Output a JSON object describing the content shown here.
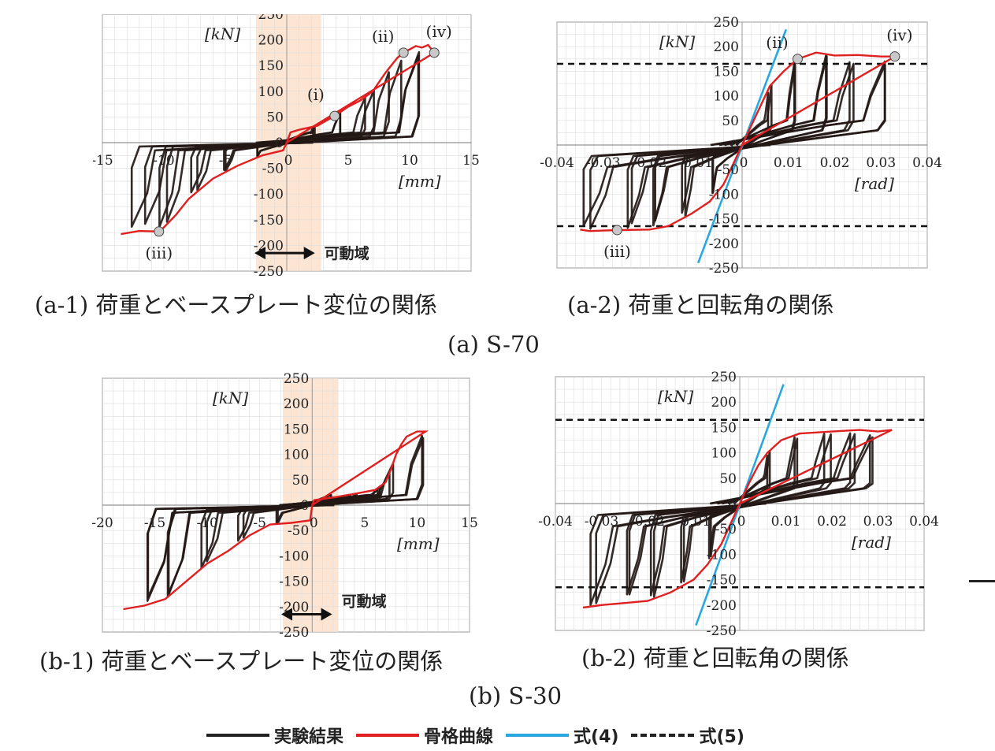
{
  "colors": {
    "experiment": "#231815",
    "skeleton": "#e02020",
    "eq4": "#29a8e0",
    "eq5": "#111111",
    "movable": "#fbe0c8",
    "grid": "#dcdcdc",
    "marker": "#c8c8c8"
  },
  "charts": [
    {
      "id": "a1",
      "caption": "(a-1) 荷重とベースプレート変位の関係",
      "ylabel": "[kN]",
      "xlabel": "[mm]",
      "xlim": [
        -15,
        15
      ],
      "ylim": [
        -250,
        250
      ],
      "xticks": [
        "-15",
        "-10",
        "-5",
        "0",
        "5",
        "10",
        "15"
      ],
      "xtick_values": [
        -15,
        -10,
        -5,
        0,
        5,
        10,
        15
      ],
      "yticks": [
        "250",
        "200",
        "150",
        "100",
        "50",
        "0",
        "-50",
        "-100",
        "-150",
        "-200",
        "-250"
      ],
      "ytick_values": [
        250,
        200,
        150,
        100,
        50,
        0,
        -50,
        -100,
        -150,
        -200,
        -250
      ],
      "movable_range": [
        -2.5,
        2.8
      ],
      "movable_label": "可動域",
      "points": [
        {
          "label": "(i)",
          "x": 3.9,
          "y": 52
        },
        {
          "label": "(ii)",
          "x": 9.5,
          "y": 175
        },
        {
          "label": "(iii)",
          "x": -10.4,
          "y": -173
        },
        {
          "label": "(iv)",
          "x": 12.0,
          "y": 175
        }
      ],
      "skeleton": [
        [
          0,
          0
        ],
        [
          0.3,
          20
        ],
        [
          1,
          25
        ],
        [
          2.5,
          33
        ],
        [
          3.9,
          52
        ],
        [
          5,
          70
        ],
        [
          6,
          82
        ],
        [
          7,
          100
        ],
        [
          8,
          135
        ],
        [
          9,
          165
        ],
        [
          9.5,
          175
        ],
        [
          10.5,
          188
        ],
        [
          11,
          185
        ],
        [
          11.5,
          190
        ],
        [
          12,
          175
        ],
        [
          0,
          0
        ],
        [
          -0.3,
          -15
        ],
        [
          -2,
          -25
        ],
        [
          -4,
          -45
        ],
        [
          -6,
          -70
        ],
        [
          -8,
          -110
        ],
        [
          -9,
          -140
        ],
        [
          -10,
          -165
        ],
        [
          -10.4,
          -173
        ],
        [
          -12,
          -172
        ],
        [
          -13.5,
          -178
        ]
      ]
    },
    {
      "id": "a2",
      "caption": "(a-2) 荷重と回転角の関係",
      "ylabel": "[kN]",
      "xlabel": "[rad]",
      "xlim": [
        -0.04,
        0.04
      ],
      "ylim": [
        -250,
        250
      ],
      "xticks": [
        "-0.04",
        "-0.03",
        "-0.02",
        "-0.01",
        "0",
        "0.01",
        "0.02",
        "0.03",
        "0.04"
      ],
      "xtick_values": [
        -0.04,
        -0.03,
        -0.02,
        -0.01,
        0,
        0.01,
        0.02,
        0.03,
        0.04
      ],
      "yticks": [
        "250",
        "200",
        "150",
        "100",
        "50",
        "0",
        "-50",
        "-100",
        "-150",
        "-200",
        "-250"
      ],
      "ytick_values": [
        250,
        200,
        150,
        100,
        50,
        0,
        -50,
        -100,
        -150,
        -200,
        -250
      ],
      "eq5_levels": [
        165,
        -165
      ],
      "eq4_line": [
        [
          -0.0095,
          -240
        ],
        [
          0.0095,
          235
        ]
      ],
      "points": [
        {
          "label": "(ii)",
          "x": 0.012,
          "y": 175
        },
        {
          "label": "(iii)",
          "x": -0.027,
          "y": -173
        },
        {
          "label": "(iv)",
          "x": 0.033,
          "y": 180
        }
      ],
      "skeleton": [
        [
          0,
          0
        ],
        [
          0.002,
          40
        ],
        [
          0.004,
          80
        ],
        [
          0.006,
          120
        ],
        [
          0.009,
          150
        ],
        [
          0.012,
          175
        ],
        [
          0.016,
          188
        ],
        [
          0.02,
          182
        ],
        [
          0.025,
          183
        ],
        [
          0.03,
          180
        ],
        [
          0.033,
          180
        ],
        [
          0,
          0
        ],
        [
          -0.002,
          -40
        ],
        [
          -0.004,
          -80
        ],
        [
          -0.007,
          -115
        ],
        [
          -0.011,
          -140
        ],
        [
          -0.016,
          -165
        ],
        [
          -0.02,
          -172
        ],
        [
          -0.027,
          -173
        ],
        [
          -0.033,
          -175
        ],
        [
          -0.035,
          -172
        ]
      ]
    },
    {
      "id": "b1",
      "caption": "(b-1) 荷重とベースプレート変位の関係",
      "ylabel": "[kN]",
      "xlabel": "[mm]",
      "xlim": [
        -20,
        15
      ],
      "ylim": [
        -250,
        250
      ],
      "xticks": [
        "-20",
        "-15",
        "-10",
        "-5",
        "0",
        "5",
        "10",
        "15"
      ],
      "xtick_values": [
        -20,
        -15,
        -10,
        -5,
        0,
        5,
        10,
        15
      ],
      "yticks": [
        "250",
        "200",
        "150",
        "100",
        "50",
        "0",
        "-50",
        "-100",
        "-150",
        "-200",
        "-250"
      ],
      "ytick_values": [
        250,
        200,
        150,
        100,
        50,
        0,
        -50,
        -100,
        -150,
        -200,
        -250
      ],
      "movable_range": [
        -2.8,
        2.5
      ],
      "movable_label": "可動域",
      "points": [],
      "skeleton": [
        [
          0,
          0
        ],
        [
          0.2,
          10
        ],
        [
          2,
          15
        ],
        [
          4,
          22
        ],
        [
          6,
          30
        ],
        [
          7,
          45
        ],
        [
          7.5,
          70
        ],
        [
          8,
          100
        ],
        [
          8.5,
          120
        ],
        [
          9,
          135
        ],
        [
          10,
          145
        ],
        [
          10.8,
          145
        ],
        [
          0,
          0
        ],
        [
          -0.2,
          -30
        ],
        [
          -2,
          -35
        ],
        [
          -4,
          -38
        ],
        [
          -6,
          -60
        ],
        [
          -8,
          -90
        ],
        [
          -10,
          -115
        ],
        [
          -12,
          -150
        ],
        [
          -14,
          -185
        ],
        [
          -16,
          -198
        ],
        [
          -18,
          -205
        ]
      ]
    },
    {
      "id": "b2",
      "caption": "(b-2) 荷重と回転角の関係",
      "ylabel": "[kN]",
      "xlabel": "[rad]",
      "xlim": [
        -0.04,
        0.04
      ],
      "ylim": [
        -250,
        250
      ],
      "xticks": [
        "-0.04",
        "-0.03",
        "-0.02",
        "-0.01",
        "0",
        "0.01",
        "0.02",
        "0.03",
        "0.04"
      ],
      "xtick_values": [
        -0.04,
        -0.03,
        -0.02,
        -0.01,
        0,
        0.01,
        0.02,
        0.03,
        0.04
      ],
      "yticks": [
        "250",
        "200",
        "150",
        "100",
        "50",
        "0",
        "-50",
        "-100",
        "-150",
        "-200",
        "-250"
      ],
      "ytick_values": [
        250,
        200,
        150,
        100,
        50,
        0,
        -50,
        -100,
        -150,
        -200,
        -250
      ],
      "eq5_levels": [
        165,
        -165
      ],
      "eq4_line": [
        [
          -0.0095,
          -240
        ],
        [
          0.0095,
          235
        ]
      ],
      "points": [],
      "skeleton": [
        [
          0,
          0
        ],
        [
          0.002,
          40
        ],
        [
          0.004,
          75
        ],
        [
          0.006,
          100
        ],
        [
          0.009,
          125
        ],
        [
          0.013,
          138
        ],
        [
          0.02,
          142
        ],
        [
          0.026,
          145
        ],
        [
          0.03,
          142
        ],
        [
          0.033,
          145
        ],
        [
          0,
          0
        ],
        [
          -0.002,
          -40
        ],
        [
          -0.004,
          -80
        ],
        [
          -0.007,
          -120
        ],
        [
          -0.01,
          -150
        ],
        [
          -0.015,
          -175
        ],
        [
          -0.02,
          -192
        ],
        [
          -0.03,
          -200
        ],
        [
          -0.034,
          -205
        ]
      ]
    }
  ],
  "groups": [
    {
      "label": "(a) S-70"
    },
    {
      "label": "(b) S-30"
    }
  ],
  "legend": {
    "experiment": "実験結果",
    "skeleton": "骨格曲線",
    "eq4": "式(4)",
    "eq5": "式(5)"
  }
}
